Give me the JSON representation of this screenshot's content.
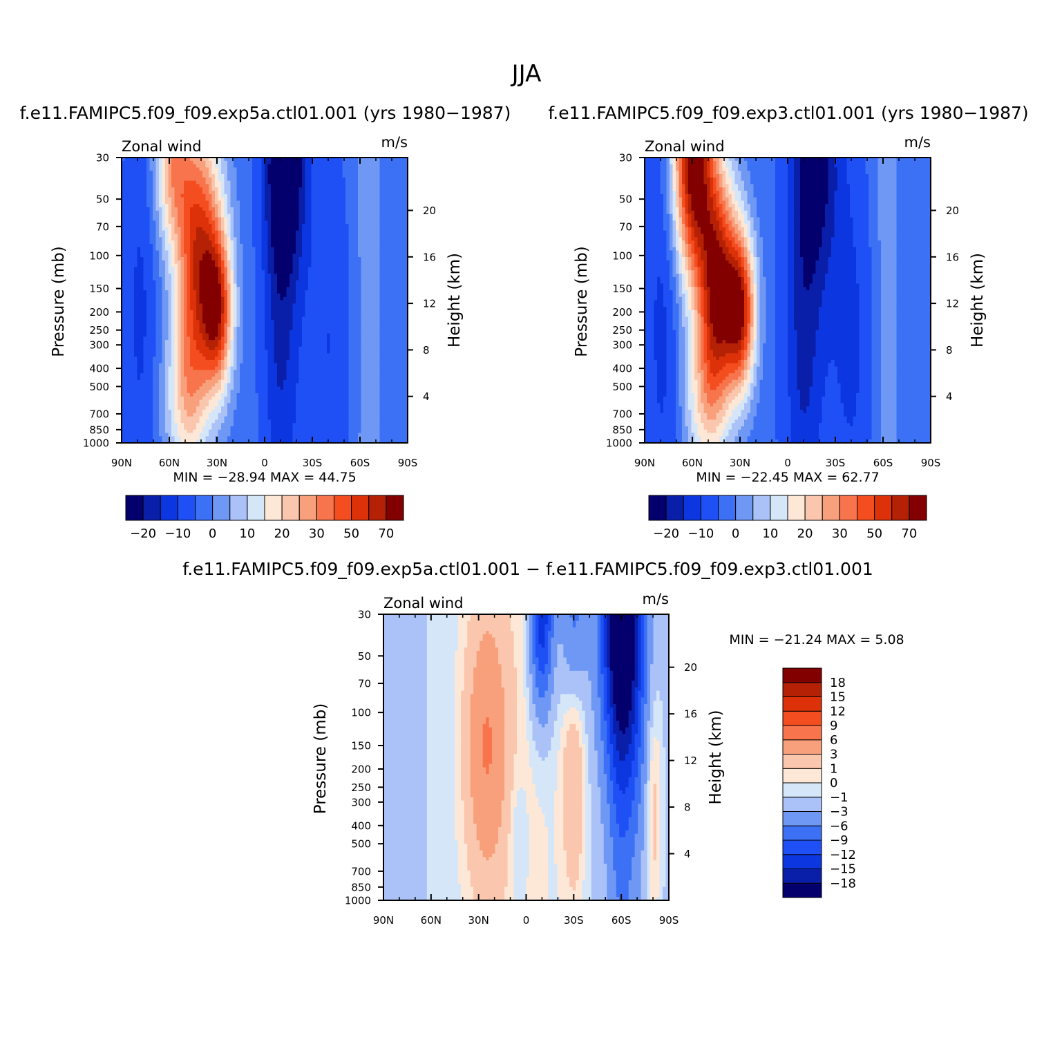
{
  "figure": {
    "title": "JJA",
    "panel_titles": [
      "f.e11.FAMIPC5.f09_f09.exp5a.ctl01.001 (yrs 1980−1987)",
      "f.e11.FAMIPC5.f09_f09.exp3.ctl01.001 (yrs 1980−1987)",
      "f.e11.FAMIPC5.f09_f09.exp5a.ctl01.001 − f.e11.FAMIPC5.f09_f09.exp3.ctl01.001"
    ]
  },
  "chart_data": [
    {
      "type": "heatmap",
      "subtype": "filled-contour latitude-pressure cross section",
      "variable_label": "Zonal wind",
      "units": "m/s",
      "ylabel": "Pressure (mb)",
      "ylabel_right": "Height (km)",
      "x_ticks": [
        "90N",
        "60N",
        "30N",
        "0",
        "30S",
        "60S",
        "90S"
      ],
      "y_ticks": [
        "30",
        "50",
        "70",
        "100",
        "150",
        "200",
        "250",
        "300",
        "400",
        "500",
        "700",
        "850",
        "1000"
      ],
      "y_right_ticks": [
        "20",
        "16",
        "12",
        "8",
        "4"
      ],
      "ylim": [
        1000,
        30
      ],
      "y_scale": "log",
      "stats": {
        "min_label": "MIN =",
        "min": "−28.94",
        "max_label": "MAX =",
        "max": "44.75"
      },
      "colorbar": {
        "orientation": "horizontal",
        "colors": [
          "#03006e",
          "#0a1fa9",
          "#0c37e0",
          "#1e50f5",
          "#3c71f5",
          "#6f98f5",
          "#aac2f7",
          "#d4e6f8",
          "#fde8d8",
          "#fac7ae",
          "#f8a07b",
          "#f7744d",
          "#f44d1f",
          "#dd3209",
          "#b42104",
          "#820000"
        ],
        "labels": [
          "−20",
          "−10",
          "0",
          "10",
          "20",
          "30",
          "50",
          "70"
        ]
      },
      "features": {
        "easterly_min_lat": -13,
        "easterly_min_value": -28.9,
        "westerly_jet_lat": 30,
        "westerly_jet_level_mb": 200,
        "westerly_jet_value": 44.8,
        "northern_westerly_lat": 45,
        "northern_westerly_level_mb": 200
      }
    },
    {
      "type": "heatmap",
      "subtype": "filled-contour latitude-pressure cross section",
      "variable_label": "Zonal wind",
      "units": "m/s",
      "ylabel": "Pressure (mb)",
      "ylabel_right": "Height (km)",
      "x_ticks": [
        "90N",
        "60N",
        "30N",
        "0",
        "30S",
        "60S",
        "90S"
      ],
      "y_ticks": [
        "30",
        "50",
        "70",
        "100",
        "150",
        "200",
        "250",
        "300",
        "400",
        "500",
        "700",
        "850",
        "1000"
      ],
      "y_right_ticks": [
        "20",
        "16",
        "12",
        "8",
        "4"
      ],
      "ylim": [
        1000,
        30
      ],
      "y_scale": "log",
      "stats": {
        "min_label": "MIN =",
        "min": "−22.45",
        "max_label": "MAX =",
        "max": "62.77"
      },
      "colorbar": {
        "orientation": "horizontal",
        "colors": [
          "#03006e",
          "#0a1fa9",
          "#0c37e0",
          "#1e50f5",
          "#3c71f5",
          "#6f98f5",
          "#aac2f7",
          "#d4e6f8",
          "#fde8d8",
          "#fac7ae",
          "#f8a07b",
          "#f7744d",
          "#f44d1f",
          "#dd3209",
          "#b42104",
          "#820000"
        ],
        "labels": [
          "−20",
          "−10",
          "0",
          "10",
          "20",
          "30",
          "50",
          "70"
        ]
      },
      "features": {
        "easterly_min_lat": -18,
        "easterly_min_value": -22.5,
        "westerly_jet_lat": 30,
        "westerly_jet_level_mb": 200,
        "westerly_jet_value": 62.8,
        "stratospheric_jet_lat": 60,
        "stratospheric_jet_level_mb": 30
      }
    },
    {
      "type": "heatmap",
      "subtype": "filled-contour latitude-pressure difference",
      "variable_label": "Zonal wind",
      "units": "m/s",
      "ylabel": "Pressure (mb)",
      "ylabel_right": "Height (km)",
      "x_ticks": [
        "90N",
        "60N",
        "30N",
        "0",
        "30S",
        "60S",
        "90S"
      ],
      "y_ticks": [
        "30",
        "50",
        "70",
        "100",
        "150",
        "200",
        "250",
        "300",
        "400",
        "500",
        "700",
        "850",
        "1000"
      ],
      "y_right_ticks": [
        "20",
        "16",
        "12",
        "8",
        "4"
      ],
      "ylim": [
        1000,
        30
      ],
      "y_scale": "log",
      "stats": {
        "min_label": "MIN =",
        "min": "−21.24",
        "max_label": "MAX =",
        "max": "5.08"
      },
      "colorbar": {
        "orientation": "vertical",
        "colors": [
          "#03006e",
          "#0a1fa9",
          "#0c37e0",
          "#1e50f5",
          "#3c71f5",
          "#6f98f5",
          "#aac2f7",
          "#d4e6f8",
          "#fde8d8",
          "#fac7ae",
          "#f8a07b",
          "#f7744d",
          "#f44d1f",
          "#dd3209",
          "#b42104",
          "#820000"
        ],
        "labels": [
          "18",
          "15",
          "12",
          "9",
          "6",
          "3",
          "1",
          "0",
          "−1",
          "−3",
          "−6",
          "−9",
          "−12",
          "−15",
          "−18"
        ]
      },
      "features": {
        "strongest_negative_lat": -60,
        "strongest_negative_level_mb": 30,
        "strongest_negative_value": -21.2,
        "positive_band_lat": 25,
        "positive_band_value": 5.1
      }
    }
  ]
}
